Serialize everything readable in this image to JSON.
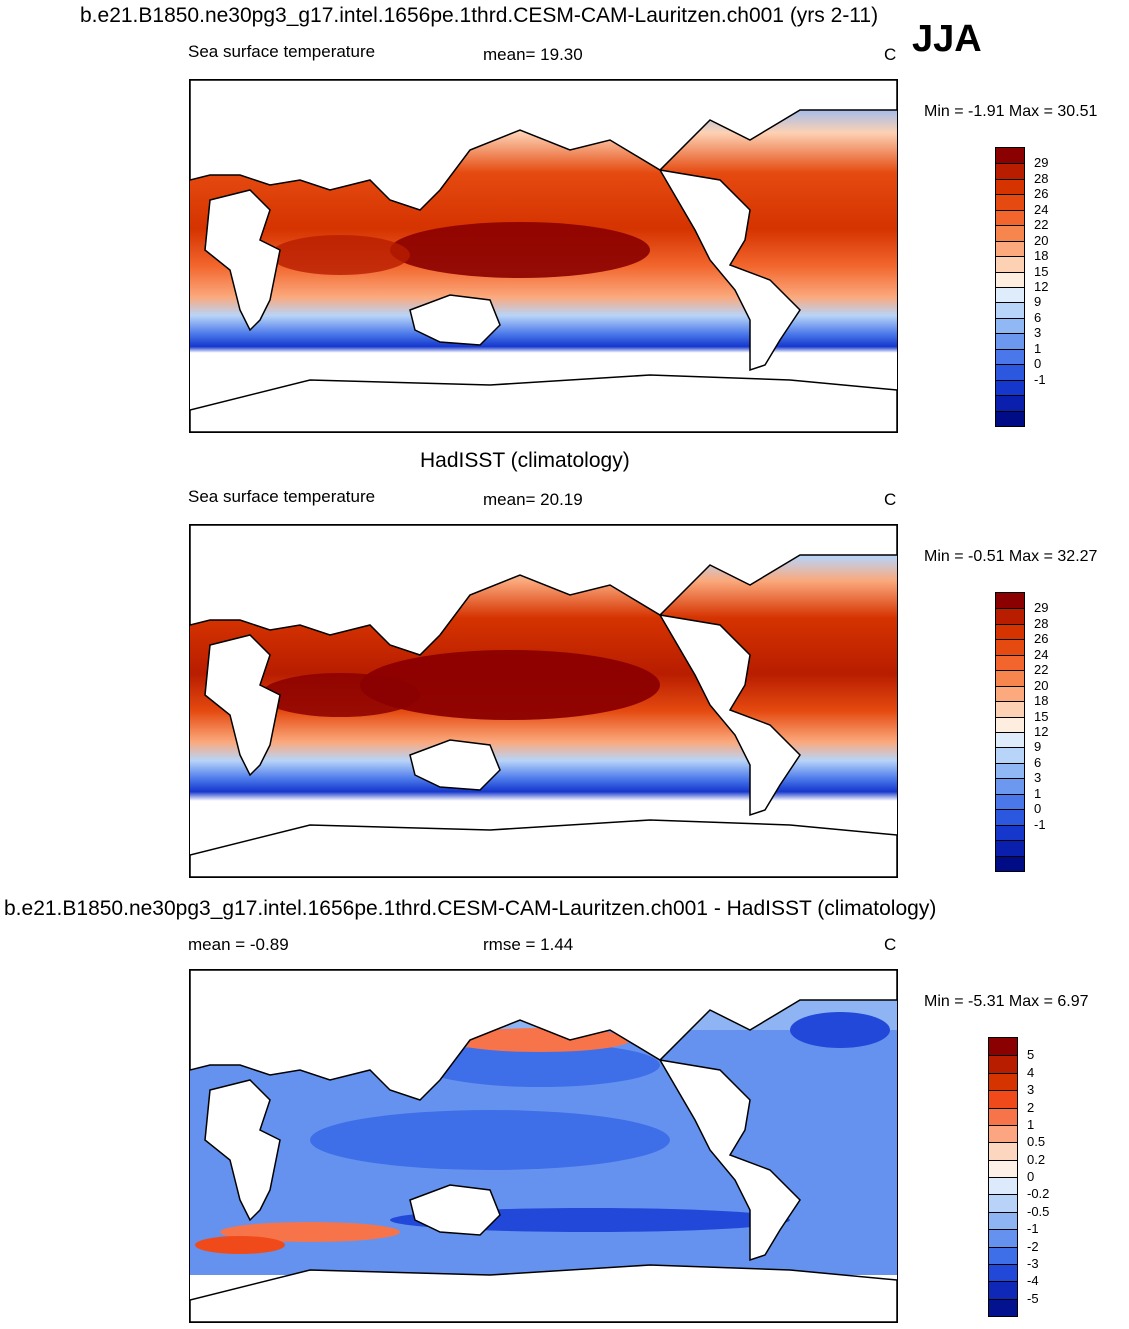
{
  "season": "JJA",
  "palettes": {
    "sst": [
      "#8b0000",
      "#b81d00",
      "#d53300",
      "#e54a10",
      "#f2662d",
      "#f7864e",
      "#fba97d",
      "#fdd1b4",
      "#fdeee0",
      "#deecfb",
      "#b8d4f8",
      "#90b8f5",
      "#6d98f0",
      "#4a78ea",
      "#2c58e0",
      "#1537cc",
      "#0a1fae",
      "#000c85"
    ],
    "diff": [
      "#8b0000",
      "#b81d00",
      "#d53300",
      "#f04a1a",
      "#f7744a",
      "#fba680",
      "#fdd6c0",
      "#fdf0e6",
      "#ddeafb",
      "#b9d2f7",
      "#8fb4f3",
      "#6592ef",
      "#3f6fe8",
      "#2148d8",
      "#1028b8",
      "#03128f"
    ]
  },
  "panels": [
    {
      "id": "model",
      "title": "b.e21.B1850.ne30pg3_g17.intel.1656pe.1thrd.CESM-CAM-Lauritzen.ch001 (yrs 2-11)",
      "left_label": "Sea surface temperature",
      "center_label": "mean=  19.30",
      "units": "C",
      "minmax": "Min =  -1.91 Max =  30.51",
      "levels": [
        "29",
        "28",
        "26",
        "24",
        "22",
        "20",
        "18",
        "15",
        "12",
        "9",
        "6",
        "3",
        "1",
        "0",
        "-1"
      ],
      "palette": "sst"
    },
    {
      "id": "obs",
      "title": "HadISST (climatology)",
      "left_label": "Sea surface temperature",
      "center_label": "mean=  20.19",
      "units": "C",
      "minmax": "Min =  -0.51 Max =  32.27",
      "levels": [
        "29",
        "28",
        "26",
        "24",
        "22",
        "20",
        "18",
        "15",
        "12",
        "9",
        "6",
        "3",
        "1",
        "0",
        "-1"
      ],
      "palette": "sst"
    },
    {
      "id": "diff",
      "title": "b.e21.B1850.ne30pg3_g17.intel.1656pe.1thrd.CESM-CAM-Lauritzen.ch001 - HadISST (climatology)",
      "left_label": "mean =  -0.89",
      "center_label": "rmse =   1.44",
      "units": "C",
      "minmax": "Min =  -5.31 Max =   6.97",
      "levels": [
        "5",
        "4",
        "3",
        "2",
        "1",
        "0.5",
        "0.2",
        "0",
        "-0.2",
        "-0.5",
        "-1",
        "-2",
        "-3",
        "-4",
        "-5"
      ],
      "palette": "diff"
    }
  ]
}
